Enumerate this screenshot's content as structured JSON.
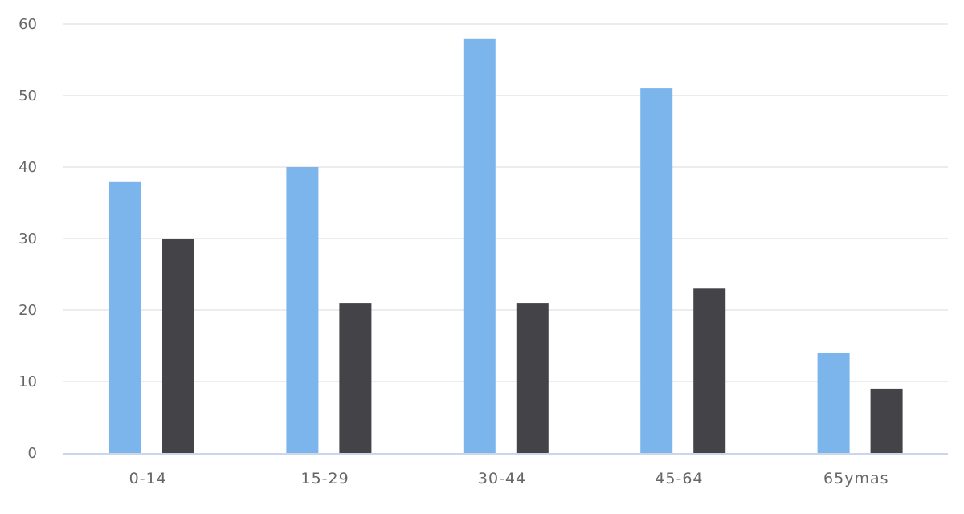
{
  "chart_data": {
    "type": "bar",
    "categories": [
      "0-14",
      "15-29",
      "30-44",
      "45-64",
      "65ymas"
    ],
    "series": [
      {
        "values": [
          38,
          40,
          58,
          51,
          14
        ],
        "color": "#7cb5ec"
      },
      {
        "values": [
          30,
          21,
          21,
          23,
          9
        ],
        "color": "#434348"
      }
    ],
    "y_ticks": [
      "0",
      "10",
      "20",
      "30",
      "40",
      "50",
      "60"
    ],
    "ylim": [
      0,
      60
    ],
    "grid": true,
    "title": "",
    "xlabel": "",
    "ylabel": ""
  },
  "colors": {
    "grid": "#e6e6e6",
    "axis": "#ccd6eb",
    "text": "#666666"
  }
}
